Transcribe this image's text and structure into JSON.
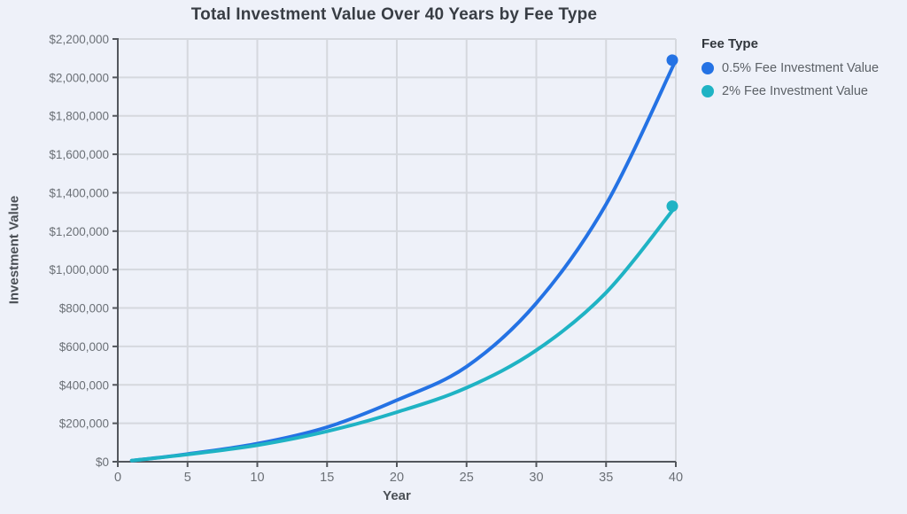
{
  "page": {
    "background": "#eef1f9"
  },
  "chart_data": {
    "type": "line",
    "title": "Total Investment Value Over 40 Years by Fee Type",
    "xlabel": "Year",
    "ylabel": "Investment Value",
    "xlim": [
      0,
      40
    ],
    "ylim": [
      0,
      2200000
    ],
    "grid": true,
    "legend_position": "right",
    "legend_title": "Fee Type",
    "x_ticks": [
      0,
      5,
      10,
      15,
      20,
      25,
      30,
      35,
      40
    ],
    "x_tick_labels": [
      "0",
      "5",
      "10",
      "15",
      "20",
      "25",
      "30",
      "35",
      "40"
    ],
    "y_ticks": [
      0,
      200000,
      400000,
      600000,
      800000,
      1000000,
      1200000,
      1400000,
      1600000,
      1800000,
      2000000,
      2200000
    ],
    "y_tick_labels": [
      "$0",
      "$200,000",
      "$400,000",
      "$600,000",
      "$800,000",
      "$1,000,000",
      "$1,200,000",
      "$1,400,000",
      "$1,600,000",
      "$1,800,000",
      "$2,000,000",
      "$2,200,000"
    ],
    "x": [
      1,
      5,
      10,
      15,
      20,
      25,
      30,
      35,
      40
    ],
    "series": [
      {
        "name": "0.5% Fee Investment Value",
        "color": "#2472e4",
        "values": [
          6000,
          40000,
          94000,
          180000,
          320000,
          495000,
          825000,
          1340000,
          2090000
        ],
        "end_marker": true
      },
      {
        "name": "2% Fee Investment Value",
        "color": "#1fb3c4",
        "values": [
          6000,
          38000,
          86000,
          158000,
          258000,
          385000,
          580000,
          880000,
          1330000
        ],
        "end_marker": true
      }
    ]
  },
  "colors": {
    "background": "#eef1f9",
    "gridline": "#d5d8de",
    "spine": "#53575d",
    "tick_text": "#6b7076",
    "title_text": "#383d44",
    "axis_label_text": "#4b5056",
    "legend_title_text": "#31363c",
    "legend_text": "#5c6167",
    "series_blue": "#2472e4",
    "series_teal": "#1fb3c4"
  }
}
